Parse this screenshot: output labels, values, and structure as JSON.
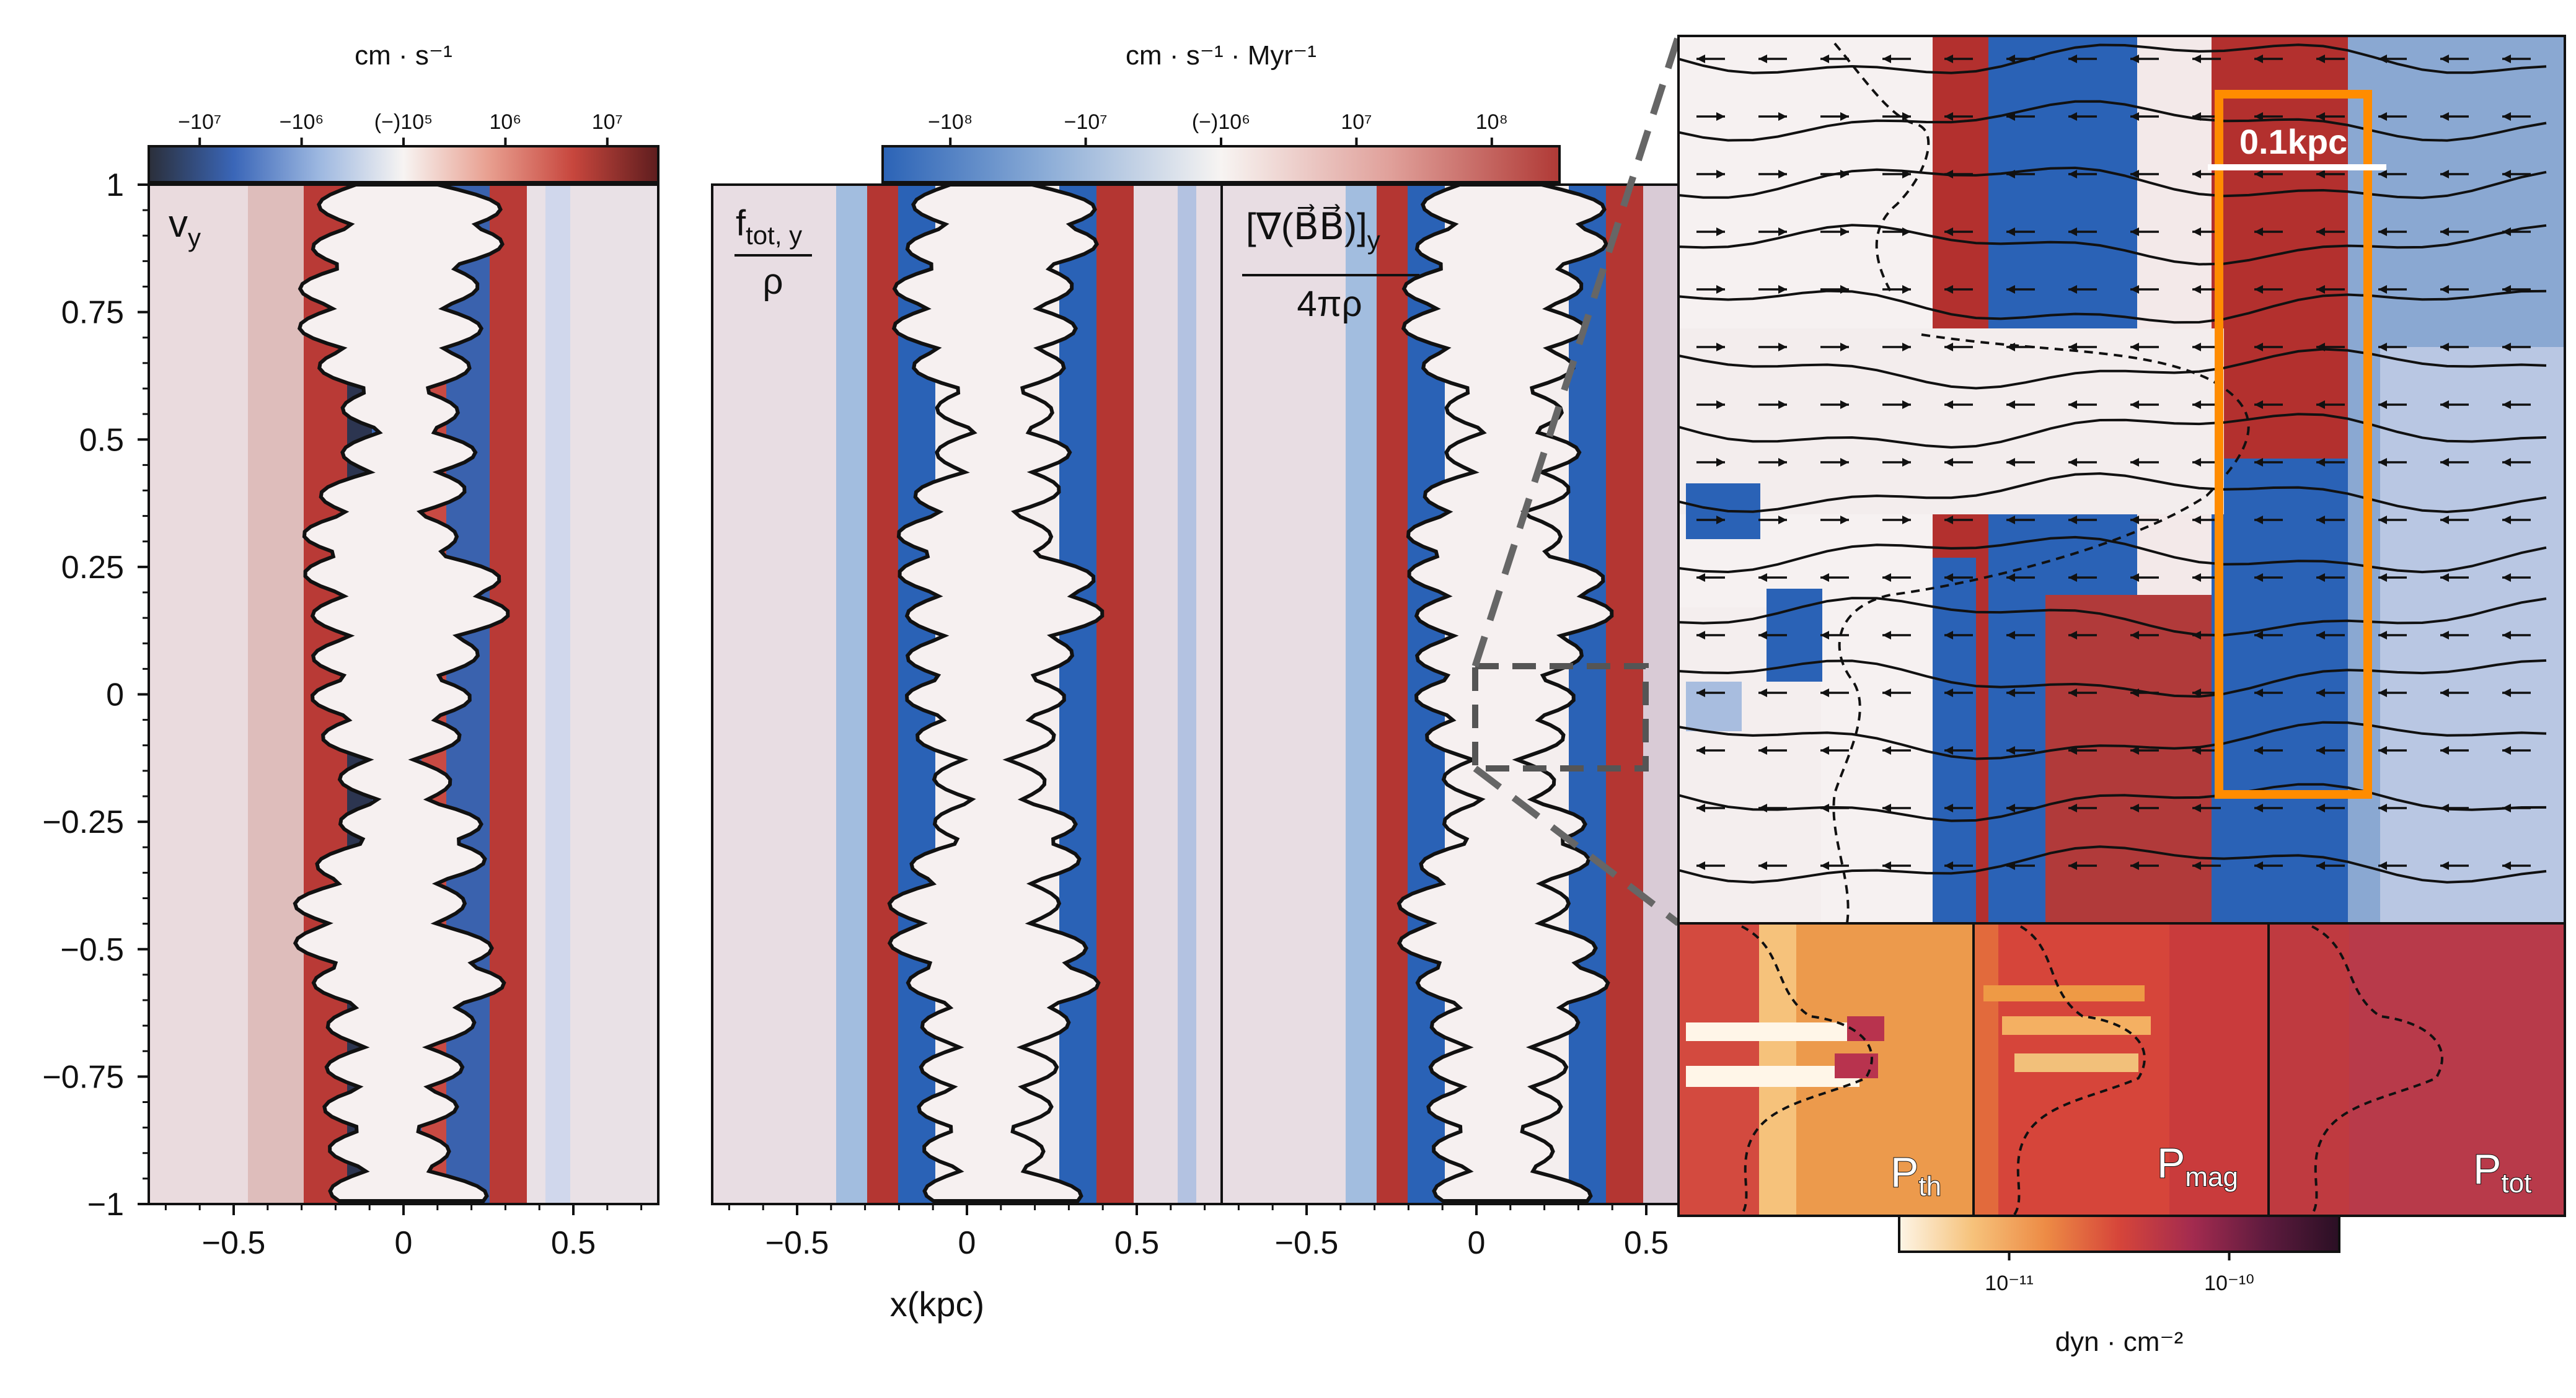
{
  "chart_data": {
    "type": "heatmap",
    "panels": [
      {
        "id": "vy",
        "label": "v",
        "label_sub": "y",
        "xlim": [
          -0.75,
          0.75
        ],
        "ylim": [
          -1,
          1
        ]
      },
      {
        "id": "ftot",
        "label_num": "f",
        "label_num_sub": "tot, y",
        "label_den": "ρ",
        "xlim": [
          -0.75,
          0.75
        ],
        "ylim": [
          -1,
          1
        ]
      },
      {
        "id": "tension",
        "label_num": "[∇(B⃗B⃗)]",
        "label_num_sub": "y",
        "label_den": "4πρ",
        "xlim": [
          -0.75,
          0.75
        ],
        "ylim": [
          -1,
          1
        ]
      }
    ],
    "yticks": [
      {
        "value": 1,
        "label": "1"
      },
      {
        "value": 0.75,
        "label": "0.75"
      },
      {
        "value": 0.5,
        "label": "0.5"
      },
      {
        "value": 0.25,
        "label": "0.25"
      },
      {
        "value": 0,
        "label": "0"
      },
      {
        "value": -0.25,
        "label": "−0.25"
      },
      {
        "value": -0.5,
        "label": "−0.5"
      },
      {
        "value": -0.75,
        "label": "−0.75"
      },
      {
        "value": -1,
        "label": "−1"
      }
    ],
    "xticks": [
      {
        "value": -0.5,
        "label": "−0.5"
      },
      {
        "value": 0,
        "label": "0"
      },
      {
        "value": 0.5,
        "label": "0.5"
      }
    ],
    "xlabel": "x(kpc)",
    "colorbar_velocity": {
      "title": "cm · s⁻¹",
      "ticks": [
        "−10⁷",
        "−10⁶",
        "(−)10⁵",
        "10⁶",
        "10⁷"
      ],
      "colormap": [
        "#2b2f3a",
        "#3a66b8",
        "#9cb7e0",
        "#f7f4f2",
        "#e89f90",
        "#c7463d",
        "#5e1d1e"
      ]
    },
    "colorbar_force": {
      "title": "cm · s⁻¹ · Myr⁻¹",
      "ticks": [
        "−10⁸",
        "−10⁷",
        "(−)10⁶",
        "10⁷",
        "10⁸"
      ],
      "colormap": [
        "#2b63b6",
        "#8fafd8",
        "#f7f4f2",
        "#e0a09a",
        "#b03a36"
      ]
    },
    "colorbar_pressure": {
      "title": "dyn · cm⁻²",
      "ticks": [
        "10⁻¹¹",
        "10⁻¹⁰"
      ],
      "colormap": [
        "#fdf5e6",
        "#f6c27b",
        "#ed8b45",
        "#d6453a",
        "#a32b4f",
        "#5e1b3e",
        "#2a0f24"
      ]
    },
    "zoom_box": {
      "x_range": [
        0.0,
        0.5
      ],
      "y_range": [
        -0.15,
        0.05
      ]
    },
    "scale_bar": "0.1kpc",
    "pressure_panels": [
      {
        "id": "pth",
        "label": "P",
        "label_sub": "th"
      },
      {
        "id": "pmag",
        "label": "P",
        "label_sub": "mag"
      },
      {
        "id": "ptot",
        "label": "P",
        "label_sub": "tot"
      }
    ],
    "colors": {
      "red": "#b3302e",
      "blue": "#2a62b6",
      "white": "#f6f2f1",
      "highlight": "#ff8c00",
      "zoom_line": "#666666"
    }
  }
}
